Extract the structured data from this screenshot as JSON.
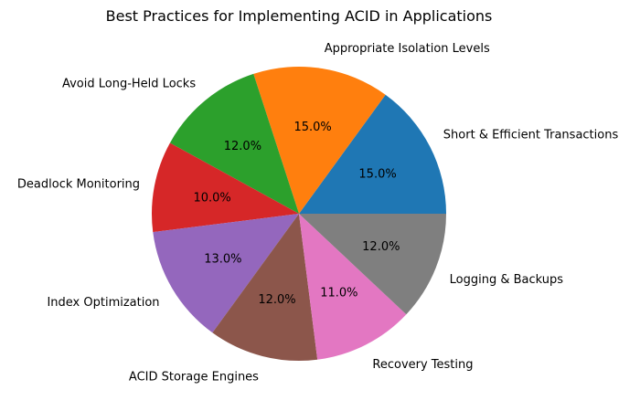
{
  "chart_data": {
    "type": "pie",
    "title": "Best Practices for Implementing ACID in Applications",
    "categories": [
      "Short & Efficient Transactions",
      "Appropriate Isolation Levels",
      "Avoid Long-Held Locks",
      "Deadlock Monitoring",
      "Index Optimization",
      "ACID Storage Engines",
      "Recovery Testing",
      "Logging & Backups"
    ],
    "values": [
      15,
      15,
      12,
      10,
      13,
      12,
      11,
      12
    ],
    "value_labels": [
      "15.0%",
      "15.0%",
      "12.0%",
      "10.0%",
      "13.0%",
      "12.0%",
      "11.0%",
      "12.0%"
    ],
    "colors": [
      "#1f77b4",
      "#ff7f0e",
      "#2ca02c",
      "#d62728",
      "#9467bd",
      "#8c564b",
      "#e377c2",
      "#7f7f7f"
    ],
    "start_angle_deg": 0,
    "direction": "counterclockwise"
  }
}
